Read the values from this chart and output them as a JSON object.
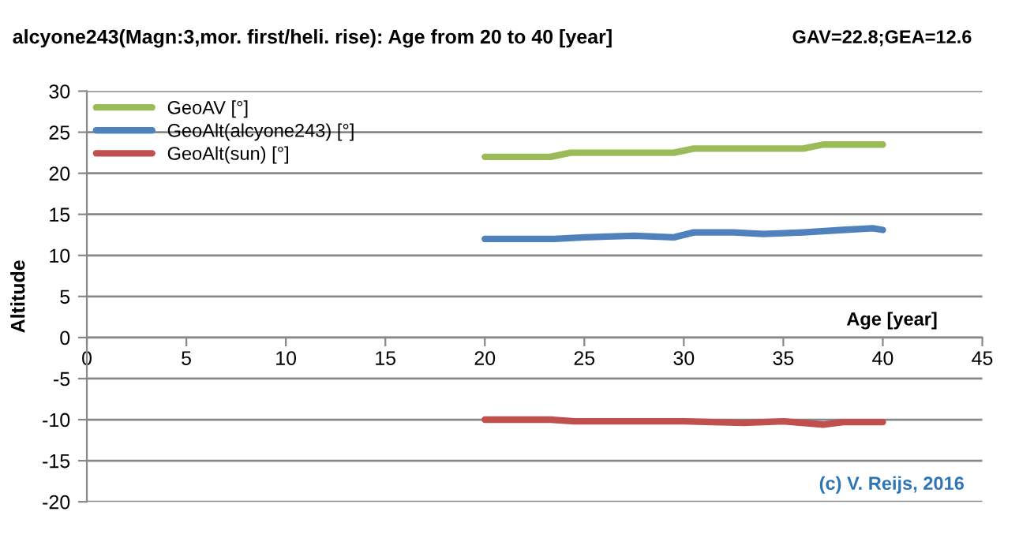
{
  "chart_data": {
    "type": "line",
    "title": "alcyone243(Magn:3,mor. first/heli. rise): Age from 20 to 40 [year]",
    "xlabel": "Age [year]",
    "ylabel": "Altitude",
    "annotations": [
      "GAV=22.8;GEA=12.6",
      "(c) V. Reijs, 2016"
    ],
    "series": [
      {
        "name": "GeoAV [°]",
        "color": "#9bbb59",
        "x": [
          20,
          23.3,
          24.3,
          29.5,
          30.5,
          36,
          37,
          40
        ],
        "values": [
          22.0,
          22.0,
          22.5,
          22.5,
          23.0,
          23.0,
          23.5,
          23.5
        ]
      },
      {
        "name": "GeoAlt(alcyone243) [°]",
        "color": "#4f81bd",
        "x": [
          20,
          23.5,
          25,
          27.5,
          29.5,
          30.5,
          32.5,
          34,
          36,
          38,
          39.5,
          40
        ],
        "values": [
          12.0,
          12.0,
          12.2,
          12.4,
          12.2,
          12.8,
          12.8,
          12.6,
          12.8,
          13.1,
          13.3,
          13.1
        ]
      },
      {
        "name": "GeoAlt(sun) [°]",
        "color": "#c0504d",
        "x": [
          20,
          23.3,
          24.5,
          30,
          33,
          35,
          37,
          38,
          40
        ],
        "values": [
          -10.0,
          -10.0,
          -10.2,
          -10.2,
          -10.4,
          -10.2,
          -10.6,
          -10.3,
          -10.3
        ]
      }
    ],
    "xlim": [
      0,
      45
    ],
    "xticks": [
      0,
      5,
      10,
      15,
      20,
      25,
      30,
      35,
      40,
      45
    ],
    "ylim": [
      -20,
      30
    ],
    "yticks": [
      -20,
      -15,
      -10,
      -5,
      0,
      5,
      10,
      15,
      20,
      25,
      30
    ],
    "grid": "y",
    "legend": "top left",
    "marker": "none",
    "line_style": "solid"
  }
}
